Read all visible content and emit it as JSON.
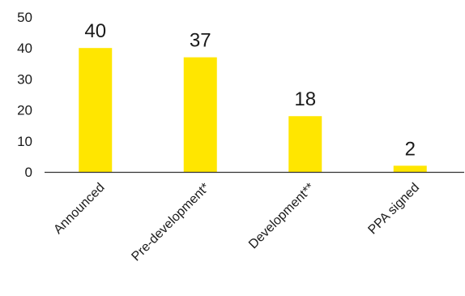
{
  "chart_data": {
    "type": "bar",
    "categories": [
      "Announced",
      "Pre-development*",
      "Development**",
      "PPA signed"
    ],
    "values": [
      40,
      37,
      18,
      2
    ],
    "data_labels": [
      "40",
      "37",
      "18",
      "2"
    ],
    "yticks": [
      "0",
      "10",
      "20",
      "30",
      "40",
      "50"
    ],
    "ylim": [
      0,
      50
    ],
    "bar_color": "#ffe600",
    "axis_color": "#333333",
    "grid": false,
    "legend": "none"
  }
}
